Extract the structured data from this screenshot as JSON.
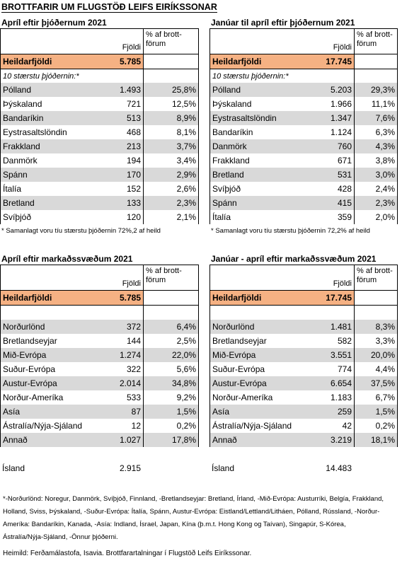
{
  "header": {
    "title": "BROTTFARIR UM FLUGSTÖÐ LEIFS EIRÍKSSONAR"
  },
  "tables": [
    {
      "title": "Apríl eftir þjóðernum 2021",
      "count_header": "Fjöldi",
      "pct_header": [
        "% af brott-",
        "förum"
      ],
      "total_label": "Heildarfjöldi",
      "total_value": "5.785",
      "subheader": "10 stærstu þjóðernin:*",
      "rows": [
        [
          "Pólland",
          "1.493",
          "25,8%"
        ],
        [
          "Þýskaland",
          "721",
          "12,5%"
        ],
        [
          "Bandaríkin",
          "513",
          "8,9%"
        ],
        [
          "Eystrasaltslöndin",
          "468",
          "8,1%"
        ],
        [
          "Frakkland",
          "213",
          "3,7%"
        ],
        [
          "Danmörk",
          "194",
          "3,4%"
        ],
        [
          "Spánn",
          "170",
          "2,9%"
        ],
        [
          "Ítalía",
          "152",
          "2,6%"
        ],
        [
          "Bretland",
          "133",
          "2,3%"
        ],
        [
          "Svíþjóð",
          "120",
          "2,1%"
        ]
      ],
      "footnote": "* Samanlagt voru tíu stærstu þjóðernin 72%,2 af heild"
    },
    {
      "title": "Janúar til apríl eftir þjóðernum 2021",
      "count_header": "Fjöldi",
      "pct_header": [
        "% af brott-",
        "förum"
      ],
      "total_label": "Heildarfjöldi",
      "total_value": "17.745",
      "subheader": "10 stærstu þjóðernin:*",
      "rows": [
        [
          "Pólland",
          "5.203",
          "29,3%"
        ],
        [
          "Þýskaland",
          "1.966",
          "11,1%"
        ],
        [
          "Eystrasaltslöndin",
          "1.347",
          "7,6%"
        ],
        [
          "Bandaríkin",
          "1.124",
          "6,3%"
        ],
        [
          "Danmörk",
          "760",
          "4,3%"
        ],
        [
          "Frakkland",
          "671",
          "3,8%"
        ],
        [
          "Bretland",
          "531",
          "3,0%"
        ],
        [
          "Svíþjóð",
          "428",
          "2,4%"
        ],
        [
          "Spánn",
          "415",
          "2,3%"
        ],
        [
          "Ítalía",
          "359",
          "2,0%"
        ]
      ],
      "footnote": "* Samanlagt voru tíu stærstu þjóðernin 72,2% af heild"
    },
    {
      "title": "Apríl eftir markaðssvæðum 2021",
      "count_header": "Fjöldi",
      "pct_header": [
        "% af brott-",
        "förum"
      ],
      "total_label": "Heildarfjöldi",
      "total_value": "5.785",
      "rows": [
        [
          "Norðurlönd",
          "372",
          "6,4%"
        ],
        [
          "Bretlandseyjar",
          "144",
          "2,5%"
        ],
        [
          "Mið-Evrópa",
          "1.274",
          "22,0%"
        ],
        [
          "Suður-Evrópa",
          "322",
          "5,6%"
        ],
        [
          "Austur-Evrópa",
          "2.014",
          "34,8%"
        ],
        [
          "Norður-Ameríka",
          "533",
          "9,2%"
        ],
        [
          "Asía",
          "87",
          "1,5%"
        ],
        [
          "Ástralía/Nýja-Sjáland",
          "12",
          "0,2%"
        ],
        [
          "Annað",
          "1.027",
          "17,8%"
        ]
      ],
      "extra_row": [
        "Ísland",
        "2.915"
      ]
    },
    {
      "title": "Janúar - apríl eftir markaðssvæðum 2021",
      "count_header": "Fjöldi",
      "pct_header": [
        "% af brott-",
        "förum"
      ],
      "total_label": "Heildarfjöldi",
      "total_value": "17.745",
      "rows": [
        [
          "Norðurlönd",
          "1.481",
          "8,3%"
        ],
        [
          "Bretlandseyjar",
          "582",
          "3,3%"
        ],
        [
          "Mið-Evrópa",
          "3.551",
          "20,0%"
        ],
        [
          "Suður-Evrópa",
          "774",
          "4,4%"
        ],
        [
          "Austur-Evrópa",
          "6.654",
          "37,5%"
        ],
        [
          "Norður-Ameríka",
          "1.183",
          "6,7%"
        ],
        [
          "Asía",
          "259",
          "1,5%"
        ],
        [
          "Ástralía/Nýja-Sjáland",
          "42",
          "0,2%"
        ],
        [
          "Annað",
          "3.219",
          "18,1%"
        ]
      ],
      "extra_row": [
        "Ísland",
        "14.483"
      ]
    }
  ],
  "notes": {
    "markets": "*-Norðurlönd: Noregur, Danmörk, Svíþjóð, Finnland, -Bretlandseyjar: Bretland, Írland, -Mið-Evrópa: Austurríki, Belgía, Frakkland, Holland, Sviss, Þýskaland, -Suður-Evrópa: Ítalía, Spánn, Austur-Evrópa: Eistland/Lettland/Litháen, Pólland, Rússland, -Norður-Ameríka: Bandaríkin, Kanada, -Asía: Indland, Ísrael, Japan, Kína (þ.m.t. Hong Kong og Taívan), Singapúr, S-Kórea, Ástralía/Nýja-Sjáland, -Önnur þjóðerni.",
    "source": "Heimild: Ferðamálastofa, Isavia. Brottfarartalningar í Flugstöð Leifs Eiríkssonar."
  }
}
